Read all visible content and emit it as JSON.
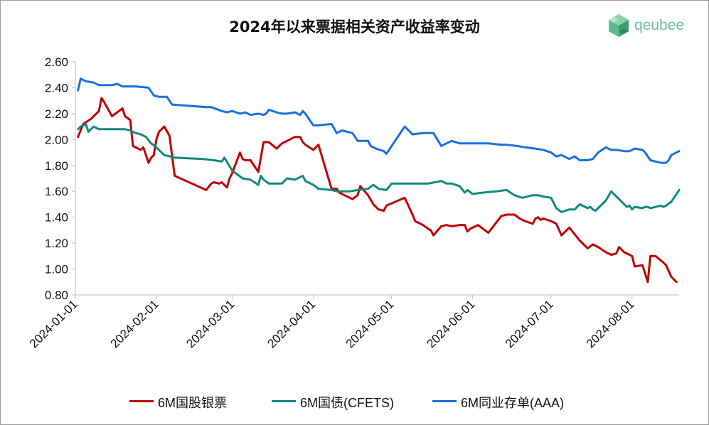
{
  "brand": {
    "name": "qeubee",
    "color": "#6cc1a0"
  },
  "chart_data": {
    "type": "line",
    "title": "2024年以来票据相关资产收益率变动",
    "xlabel": "",
    "ylabel": "",
    "ylim": [
      0.8,
      2.6
    ],
    "yticks": [
      "0.80",
      "1.00",
      "1.20",
      "1.40",
      "1.60",
      "1.80",
      "2.00",
      "2.20",
      "2.40",
      "2.60"
    ],
    "xlim": [
      "2024-01-01",
      "2024-08-19"
    ],
    "xticks": [
      "2024-01-01",
      "2024-02-01",
      "2024-03-01",
      "2024-04-01",
      "2024-05-01",
      "2024-06-01",
      "2024-07-01",
      "2024-08-01"
    ],
    "grid": false,
    "legend_position": "bottom",
    "series": [
      {
        "name": "6M国股银票",
        "color": "#c00000",
        "x": [
          "2024-01-02",
          "2024-01-04",
          "2024-01-07",
          "2024-01-10",
          "2024-01-11",
          "2024-01-12",
          "2024-01-15",
          "2024-01-17",
          "2024-01-19",
          "2024-01-20",
          "2024-01-22",
          "2024-01-23",
          "2024-01-25",
          "2024-01-26",
          "2024-01-27",
          "2024-01-29",
          "2024-01-30",
          "2024-01-31",
          "2024-02-01",
          "2024-02-02",
          "2024-02-04",
          "2024-02-06",
          "2024-02-08",
          "2024-02-19",
          "2024-02-20",
          "2024-02-22",
          "2024-02-23",
          "2024-02-25",
          "2024-02-26",
          "2024-02-28",
          "2024-02-29",
          "2024-03-01",
          "2024-03-04",
          "2024-03-05",
          "2024-03-06",
          "2024-03-08",
          "2024-03-11",
          "2024-03-13",
          "2024-03-15",
          "2024-03-18",
          "2024-03-20",
          "2024-03-22",
          "2024-03-25",
          "2024-03-27",
          "2024-03-28",
          "2024-03-29",
          "2024-04-01",
          "2024-04-03",
          "2024-04-08",
          "2024-04-10",
          "2024-04-11",
          "2024-04-12",
          "2024-04-16",
          "2024-04-18",
          "2024-04-19",
          "2024-04-22",
          "2024-04-24",
          "2024-04-26",
          "2024-04-28",
          "2024-04-29",
          "2024-05-06",
          "2024-05-09",
          "2024-05-10",
          "2024-05-13",
          "2024-05-15",
          "2024-05-16",
          "2024-05-17",
          "2024-05-20",
          "2024-05-22",
          "2024-05-24",
          "2024-05-27",
          "2024-05-28",
          "2024-05-29",
          "2024-05-30",
          "2024-05-31",
          "2024-06-03",
          "2024-06-05",
          "2024-06-07",
          "2024-06-12",
          "2024-06-14",
          "2024-06-17",
          "2024-06-19",
          "2024-06-20",
          "2024-06-21",
          "2024-06-24",
          "2024-06-25",
          "2024-06-26",
          "2024-06-27",
          "2024-06-28",
          "2024-07-01",
          "2024-07-03",
          "2024-07-05",
          "2024-07-08",
          "2024-07-10",
          "2024-07-12",
          "2024-07-15",
          "2024-07-17",
          "2024-07-19",
          "2024-07-22",
          "2024-07-24",
          "2024-07-26",
          "2024-07-27",
          "2024-07-29",
          "2024-07-31",
          "2024-08-01",
          "2024-08-02",
          "2024-08-05",
          "2024-08-07",
          "2024-08-08",
          "2024-08-10",
          "2024-08-13",
          "2024-08-14",
          "2024-08-16",
          "2024-08-18"
        ],
        "y": [
          2.02,
          2.12,
          2.16,
          2.22,
          2.32,
          2.29,
          2.18,
          2.21,
          2.24,
          2.18,
          2.15,
          1.95,
          1.93,
          1.92,
          1.94,
          1.82,
          1.86,
          1.88,
          2.0,
          2.06,
          2.1,
          2.03,
          1.72,
          1.62,
          1.61,
          1.66,
          1.67,
          1.66,
          1.67,
          1.63,
          1.7,
          1.74,
          1.9,
          1.85,
          1.84,
          1.84,
          1.75,
          1.98,
          1.98,
          1.93,
          1.97,
          1.99,
          2.02,
          2.02,
          1.98,
          1.96,
          1.92,
          1.96,
          1.62,
          1.62,
          1.59,
          1.58,
          1.54,
          1.57,
          1.64,
          1.57,
          1.5,
          1.46,
          1.45,
          1.49,
          1.55,
          1.42,
          1.37,
          1.34,
          1.31,
          1.3,
          1.26,
          1.33,
          1.34,
          1.33,
          1.34,
          1.34,
          1.34,
          1.29,
          1.31,
          1.34,
          1.31,
          1.28,
          1.41,
          1.42,
          1.42,
          1.39,
          1.38,
          1.37,
          1.35,
          1.39,
          1.4,
          1.38,
          1.39,
          1.37,
          1.35,
          1.26,
          1.32,
          1.27,
          1.22,
          1.16,
          1.19,
          1.17,
          1.13,
          1.11,
          1.12,
          1.17,
          1.13,
          1.11,
          1.1,
          1.02,
          1.03,
          0.9,
          1.1,
          1.1,
          1.05,
          1.03,
          0.94,
          0.9
        ]
      },
      {
        "name": "6M国债(CFETS)",
        "color": "#13887a",
        "x": [
          "2024-01-02",
          "2024-01-03",
          "2024-01-05",
          "2024-01-06",
          "2024-01-08",
          "2024-01-10",
          "2024-01-12",
          "2024-01-15",
          "2024-01-18",
          "2024-01-20",
          "2024-01-22",
          "2024-01-24",
          "2024-01-26",
          "2024-01-28",
          "2024-01-30",
          "2024-02-01",
          "2024-02-04",
          "2024-02-08",
          "2024-02-19",
          "2024-02-23",
          "2024-02-26",
          "2024-02-27",
          "2024-03-01",
          "2024-03-05",
          "2024-03-08",
          "2024-03-11",
          "2024-03-12",
          "2024-03-13",
          "2024-03-15",
          "2024-03-18",
          "2024-03-20",
          "2024-03-22",
          "2024-03-25",
          "2024-03-28",
          "2024-03-29",
          "2024-04-01",
          "2024-04-03",
          "2024-04-08",
          "2024-04-10",
          "2024-04-12",
          "2024-04-15",
          "2024-04-18",
          "2024-04-22",
          "2024-04-24",
          "2024-04-26",
          "2024-04-29",
          "2024-05-01",
          "2024-05-05",
          "2024-05-10",
          "2024-05-15",
          "2024-05-20",
          "2024-05-22",
          "2024-05-24",
          "2024-05-27",
          "2024-05-29",
          "2024-05-30",
          "2024-06-01",
          "2024-06-05",
          "2024-06-10",
          "2024-06-14",
          "2024-06-17",
          "2024-06-20",
          "2024-06-24",
          "2024-06-26",
          "2024-06-28",
          "2024-07-01",
          "2024-07-03",
          "2024-07-05",
          "2024-07-08",
          "2024-07-10",
          "2024-07-12",
          "2024-07-15",
          "2024-07-16",
          "2024-07-17",
          "2024-07-18",
          "2024-07-22",
          "2024-07-24",
          "2024-07-26",
          "2024-07-27",
          "2024-07-29",
          "2024-07-30",
          "2024-07-31",
          "2024-08-01",
          "2024-08-02",
          "2024-08-05",
          "2024-08-06",
          "2024-08-07",
          "2024-08-08",
          "2024-08-12",
          "2024-08-13",
          "2024-08-14",
          "2024-08-16",
          "2024-08-19"
        ],
        "y": [
          2.08,
          2.1,
          2.12,
          2.06,
          2.1,
          2.08,
          2.08,
          2.08,
          2.08,
          2.08,
          2.07,
          2.05,
          2.04,
          2.02,
          1.97,
          1.94,
          1.88,
          1.86,
          1.85,
          1.84,
          1.83,
          1.86,
          1.76,
          1.7,
          1.69,
          1.65,
          1.72,
          1.69,
          1.66,
          1.66,
          1.66,
          1.7,
          1.69,
          1.72,
          1.68,
          1.65,
          1.62,
          1.61,
          1.6,
          1.6,
          1.6,
          1.61,
          1.62,
          1.65,
          1.62,
          1.61,
          1.66,
          1.66,
          1.66,
          1.66,
          1.68,
          1.66,
          1.66,
          1.64,
          1.59,
          1.61,
          1.58,
          1.59,
          1.6,
          1.61,
          1.57,
          1.55,
          1.57,
          1.57,
          1.56,
          1.55,
          1.47,
          1.44,
          1.46,
          1.46,
          1.5,
          1.47,
          1.48,
          1.46,
          1.45,
          1.53,
          1.6,
          1.56,
          1.54,
          1.5,
          1.48,
          1.49,
          1.46,
          1.48,
          1.47,
          1.48,
          1.48,
          1.47,
          1.49,
          1.48,
          1.49,
          1.52,
          1.61
        ]
      },
      {
        "name": "6M同业存单(AAA)",
        "color": "#1a6fe0",
        "x": [
          "2024-01-02",
          "2024-01-03",
          "2024-01-05",
          "2024-01-08",
          "2024-01-10",
          "2024-01-15",
          "2024-01-17",
          "2024-01-19",
          "2024-01-22",
          "2024-01-24",
          "2024-01-29",
          "2024-01-31",
          "2024-02-02",
          "2024-02-05",
          "2024-02-07",
          "2024-02-20",
          "2024-02-22",
          "2024-02-26",
          "2024-02-28",
          "2024-03-01",
          "2024-03-04",
          "2024-03-06",
          "2024-03-08",
          "2024-03-11",
          "2024-03-13",
          "2024-03-14",
          "2024-03-15",
          "2024-03-18",
          "2024-03-20",
          "2024-03-22",
          "2024-03-25",
          "2024-03-27",
          "2024-03-28",
          "2024-03-29",
          "2024-04-01",
          "2024-04-03",
          "2024-04-08",
          "2024-04-10",
          "2024-04-12",
          "2024-04-16",
          "2024-04-18",
          "2024-04-22",
          "2024-04-23",
          "2024-04-25",
          "2024-04-28",
          "2024-04-29",
          "2024-05-06",
          "2024-05-09",
          "2024-05-13",
          "2024-05-15",
          "2024-05-17",
          "2024-05-20",
          "2024-05-24",
          "2024-05-27",
          "2024-05-29",
          "2024-05-31",
          "2024-06-03",
          "2024-06-07",
          "2024-06-12",
          "2024-06-14",
          "2024-06-18",
          "2024-06-21",
          "2024-06-25",
          "2024-06-28",
          "2024-07-01",
          "2024-07-03",
          "2024-07-05",
          "2024-07-08",
          "2024-07-10",
          "2024-07-12",
          "2024-07-15",
          "2024-07-17",
          "2024-07-19",
          "2024-07-22",
          "2024-07-24",
          "2024-07-26",
          "2024-07-29",
          "2024-07-31",
          "2024-08-01",
          "2024-08-02",
          "2024-08-05",
          "2024-08-06",
          "2024-08-07",
          "2024-08-08",
          "2024-08-12",
          "2024-08-13",
          "2024-08-14",
          "2024-08-15",
          "2024-08-16",
          "2024-08-19"
        ],
        "y": [
          2.38,
          2.47,
          2.45,
          2.44,
          2.42,
          2.42,
          2.43,
          2.41,
          2.41,
          2.41,
          2.4,
          2.34,
          2.33,
          2.33,
          2.27,
          2.25,
          2.25,
          2.22,
          2.21,
          2.22,
          2.2,
          2.21,
          2.19,
          2.2,
          2.19,
          2.2,
          2.23,
          2.21,
          2.2,
          2.2,
          2.21,
          2.19,
          2.22,
          2.2,
          2.11,
          2.11,
          2.12,
          2.05,
          2.07,
          2.05,
          1.99,
          1.99,
          1.95,
          1.93,
          1.91,
          1.89,
          2.1,
          2.04,
          2.05,
          2.05,
          2.05,
          1.95,
          1.99,
          1.97,
          1.97,
          1.97,
          1.97,
          1.97,
          1.96,
          1.96,
          1.95,
          1.94,
          1.93,
          1.92,
          1.9,
          1.87,
          1.88,
          1.85,
          1.87,
          1.84,
          1.84,
          1.85,
          1.9,
          1.94,
          1.92,
          1.92,
          1.91,
          1.91,
          1.92,
          1.93,
          1.92,
          1.9,
          1.87,
          1.84,
          1.82,
          1.82,
          1.82,
          1.84,
          1.88,
          1.91
        ]
      }
    ]
  }
}
